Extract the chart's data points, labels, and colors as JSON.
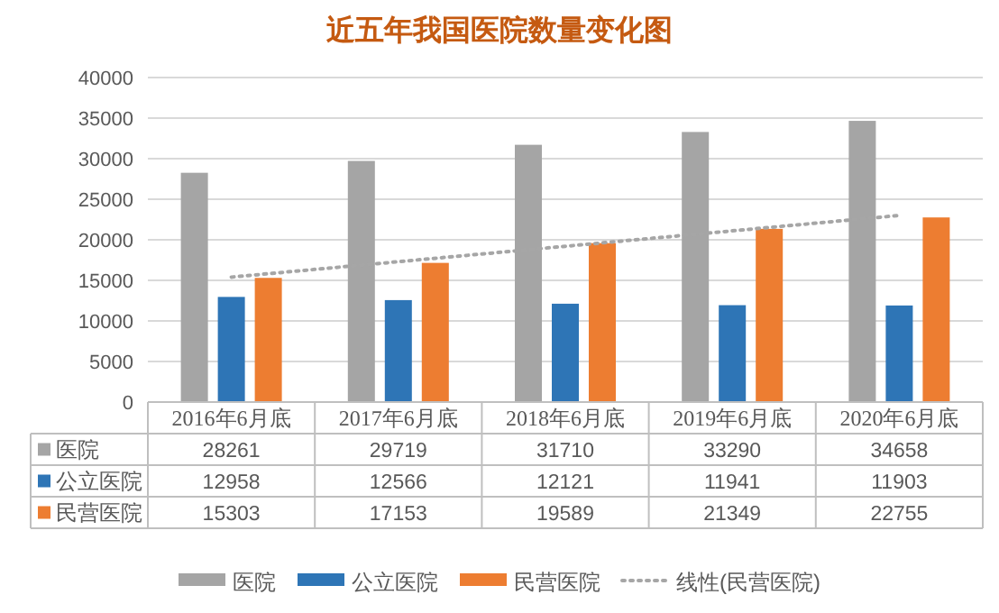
{
  "chart_data": {
    "type": "bar",
    "title": "近五年我国医院数量变化图",
    "categories": [
      "2016年6月底",
      "2017年6月底",
      "2018年6月底",
      "2019年6月底",
      "2020年6月底"
    ],
    "series": [
      {
        "name": "医院",
        "color": "#a5a5a5",
        "values": [
          28261,
          29719,
          31710,
          33290,
          34658
        ],
        "value_labels": [
          "28261",
          "29719",
          "31710",
          "33290",
          "34658"
        ]
      },
      {
        "name": "公立医院",
        "color": "#2e75b6",
        "values": [
          12958,
          12566,
          12121,
          11941,
          11903
        ],
        "value_labels": [
          "12958",
          "12566",
          "12121",
          "11941",
          "11903"
        ]
      },
      {
        "name": "民营医院",
        "color": "#ed7d31",
        "values": [
          15303,
          17153,
          19589,
          21349,
          22755
        ],
        "value_labels": [
          "15303",
          "17153",
          "19589",
          "21349",
          "22755"
        ]
      },
      {
        "name": "线性(民营医院)",
        "type": "line",
        "color": "#a6a6a6",
        "line_style": "dotted",
        "marker": "none",
        "x": [
          "2016年6月底",
          "2020年6月底"
        ],
        "values": [
          15400,
          23000
        ]
      }
    ],
    "ylim": [
      0,
      40000
    ],
    "yticks": [
      0,
      5000,
      10000,
      15000,
      20000,
      25000,
      30000,
      35000,
      40000
    ],
    "grid": "y",
    "legend": "bottom"
  }
}
